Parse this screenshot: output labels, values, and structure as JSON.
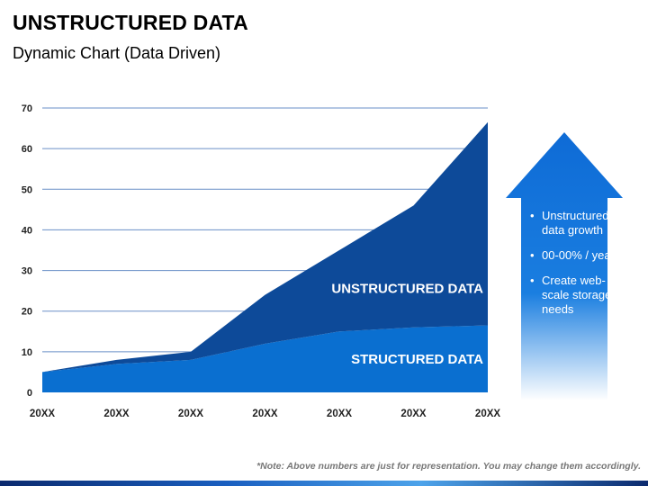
{
  "slide": {
    "title": "UNSTRUCTURED DATA",
    "subtitle": "Dynamic Chart (Data Driven)",
    "note": "*Note: Above numbers are just for representation. You may change them accordingly."
  },
  "arrow": {
    "bullets": [
      "Unstructured data growth",
      "00-00% / year",
      "Create web-scale storage needs"
    ],
    "colors": {
      "top": "#0e6bd6",
      "bottom": "#ffffff"
    }
  },
  "chart_data": {
    "type": "area",
    "stacked": true,
    "categories": [
      "20XX",
      "20XX",
      "20XX",
      "20XX",
      "20XX",
      "20XX",
      "20XX"
    ],
    "series": [
      {
        "name": "STRUCTURED DATA",
        "values": [
          5,
          7,
          8,
          12,
          15,
          16,
          16.5
        ],
        "color": "#0a6fd0"
      },
      {
        "name": "UNSTRUCTURED DATA",
        "values": [
          0,
          1,
          2,
          12,
          20,
          30,
          50
        ],
        "color": "#0d4a99"
      }
    ],
    "ylim": [
      0,
      70
    ],
    "yticks": [
      0,
      10,
      20,
      30,
      40,
      50,
      60,
      70
    ],
    "grid": true
  }
}
